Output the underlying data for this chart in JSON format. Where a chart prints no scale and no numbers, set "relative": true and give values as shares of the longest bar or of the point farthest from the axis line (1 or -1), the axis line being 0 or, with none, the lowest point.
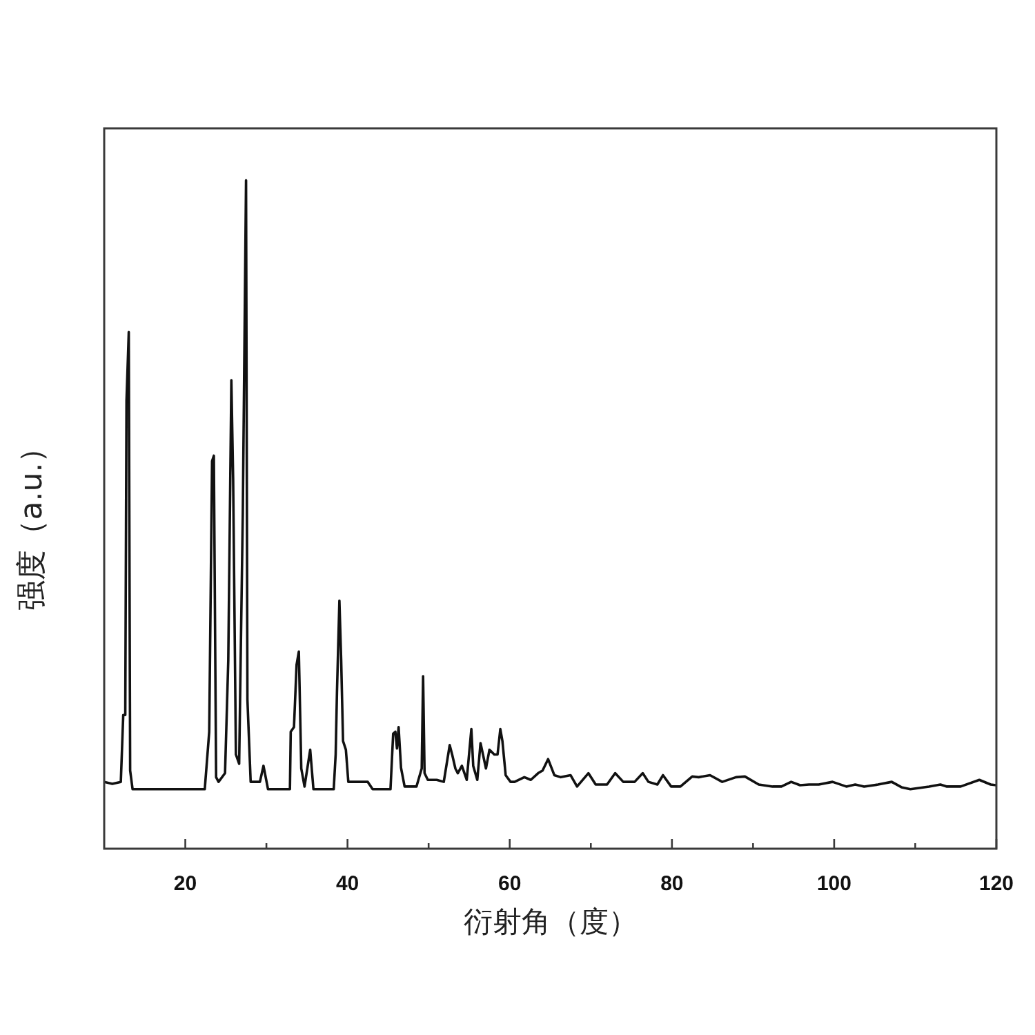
{
  "chart_data": {
    "type": "line",
    "xlabel": "衍射角（度）",
    "ylabel": "强度（a.u.）",
    "relative": true,
    "color": "#111111",
    "xlim": [
      10,
      120
    ],
    "xticks": [
      20,
      {
        "value": 30,
        "label": null
      },
      40,
      {
        "value": 50,
        "label": null
      },
      60,
      {
        "value": 70,
        "label": null
      },
      80,
      {
        "value": 90,
        "label": null
      },
      100,
      {
        "value": 110,
        "label": null
      },
      120
    ],
    "x": [
      10.0,
      11.0,
      12.05,
      12.35,
      12.6,
      12.75,
      13.03,
      13.2,
      13.5,
      22.4,
      22.95,
      23.3,
      23.52,
      23.8,
      24.1,
      24.9,
      25.3,
      25.68,
      25.9,
      26.24,
      26.64,
      27.09,
      27.49,
      27.66,
      28.06,
      29.2,
      29.64,
      30.2,
      32.9,
      33.0,
      33.4,
      33.72,
      34.0,
      34.3,
      34.7,
      35.4,
      35.8,
      38.3,
      38.54,
      38.7,
      39.0,
      39.22,
      39.45,
      39.8,
      40.1,
      42.5,
      43.1,
      45.3,
      45.63,
      45.9,
      46.1,
      46.3,
      46.6,
      47.04,
      48.5,
      49.15,
      49.32,
      49.5,
      49.9,
      51.0,
      51.87,
      52.6,
      52.9,
      53.3,
      53.6,
      54.1,
      54.7,
      55.27,
      55.5,
      56.0,
      56.4,
      56.7,
      57.07,
      57.5,
      58.1,
      58.5,
      58.84,
      59.1,
      59.5,
      60.1,
      60.6,
      61.8,
      62.6,
      63.5,
      64.05,
      64.73,
      65.5,
      66.3,
      67.5,
      68.3,
      69.7,
      70.6,
      72.0,
      73.0,
      74.0,
      75.4,
      76.4,
      77.1,
      78.2,
      78.9,
      79.9,
      81.05,
      82.5,
      83.3,
      84.7,
      86.2,
      87.9,
      89.0,
      90.7,
      92.4,
      93.5,
      94.7,
      95.8,
      96.9,
      98.1,
      99.8,
      101.5,
      102.6,
      103.7,
      105.4,
      107.1,
      108.3,
      109.4,
      111.7,
      113.1,
      113.9,
      115.6,
      117.9,
      119.3,
      120.0
    ],
    "values": [
      0.1,
      0.097,
      0.1,
      0.2,
      0.2,
      0.67,
      0.773,
      0.117,
      0.089,
      0.089,
      0.175,
      0.58,
      0.588,
      0.107,
      0.1,
      0.113,
      0.282,
      0.701,
      0.553,
      0.141,
      0.127,
      0.502,
      1.0,
      0.223,
      0.1,
      0.1,
      0.124,
      0.089,
      0.089,
      0.175,
      0.182,
      0.275,
      0.295,
      0.12,
      0.093,
      0.148,
      0.089,
      0.089,
      0.141,
      0.234,
      0.371,
      0.282,
      0.161,
      0.148,
      0.1,
      0.1,
      0.089,
      0.089,
      0.172,
      0.175,
      0.15,
      0.182,
      0.121,
      0.093,
      0.093,
      0.12,
      0.258,
      0.113,
      0.103,
      0.103,
      0.1,
      0.155,
      0.141,
      0.12,
      0.113,
      0.124,
      0.103,
      0.179,
      0.124,
      0.103,
      0.158,
      0.141,
      0.12,
      0.148,
      0.141,
      0.141,
      0.179,
      0.161,
      0.11,
      0.1,
      0.1,
      0.107,
      0.103,
      0.113,
      0.117,
      0.134,
      0.11,
      0.107,
      0.11,
      0.093,
      0.113,
      0.096,
      0.096,
      0.113,
      0.1,
      0.1,
      0.113,
      0.1,
      0.096,
      0.11,
      0.093,
      0.093,
      0.108,
      0.107,
      0.11,
      0.1,
      0.107,
      0.108,
      0.096,
      0.093,
      0.093,
      0.1,
      0.095,
      0.096,
      0.096,
      0.1,
      0.093,
      0.096,
      0.093,
      0.096,
      0.1,
      0.092,
      0.089,
      0.093,
      0.096,
      0.093,
      0.093,
      0.103,
      0.096,
      0.095
    ]
  }
}
